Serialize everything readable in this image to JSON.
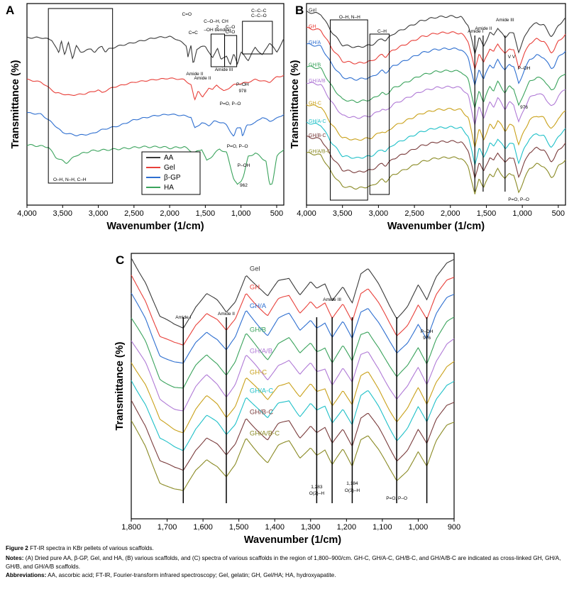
{
  "figure": {
    "caption_label": "Figure 2",
    "caption_title": "FT-IR spectra in KBr pellets of various scaffolds.",
    "notes_label": "Notes:",
    "notes_text": "(A) Dried pure AA, β-GP, Gel, and HA, (B) various scaffolds, and (C) spectra of various scaffolds in the region of 1,800–900/cm. GH-C, GH/A-C, GH/B-C, and GH/A/B-C are indicated as cross-linked GH, GH/A, GH/B, and GH/A/B scaffolds.",
    "abbrev_label": "Abbreviations:",
    "abbrev_text": "AA, ascorbic acid; FT-IR, Fourier-transform infrared spectroscopy; Gel, gelatin; GH, Gel/HA; HA, hydroxyapatite."
  },
  "chart_data": [
    {
      "panel": "A",
      "type": "line",
      "xlabel": "Wavenumber (1/cm)",
      "ylabel": "Transmittance (%)",
      "xlim": [
        4000,
        400
      ],
      "x_ticks": [
        "4,000",
        "3,500",
        "3,000",
        "2,500",
        "2,000",
        "1,500",
        "1,000",
        "500"
      ],
      "x_tick_values": [
        4000,
        3500,
        3000,
        2500,
        2000,
        1500,
        1000,
        500
      ],
      "legend": [
        "AA",
        "Gel",
        "β-GP",
        "HA"
      ],
      "legend_position": "bottom-right",
      "series": [
        {
          "name": "AA",
          "color": "#3a3a3a",
          "offset": 0.14,
          "scale": 0.16,
          "points": [
            [
              4000,
              0.05
            ],
            [
              3800,
              0.05
            ],
            [
              3650,
              0.12
            ],
            [
              3550,
              0.55
            ],
            [
              3520,
              0.1
            ],
            [
              3470,
              0.6
            ],
            [
              3420,
              0.2
            ],
            [
              3360,
              0.7
            ],
            [
              3310,
              0.3
            ],
            [
              3250,
              0.5
            ],
            [
              3100,
              0.4
            ],
            [
              3050,
              0.5
            ],
            [
              2950,
              0.3
            ],
            [
              2900,
              0.5
            ],
            [
              2850,
              0.4
            ],
            [
              2700,
              0.3
            ],
            [
              2500,
              0.2
            ],
            [
              2200,
              0.05
            ],
            [
              2000,
              0.02
            ],
            [
              1900,
              0.1
            ],
            [
              1760,
              0.3
            ],
            [
              1750,
              0.7
            ],
            [
              1700,
              0.3
            ],
            [
              1670,
              0.9
            ],
            [
              1620,
              0.4
            ],
            [
              1500,
              0.3
            ],
            [
              1400,
              0.7
            ],
            [
              1330,
              0.35
            ],
            [
              1280,
              0.75
            ],
            [
              1200,
              0.6
            ],
            [
              1150,
              0.9
            ],
            [
              1100,
              0.55
            ],
            [
              1050,
              0.85
            ],
            [
              1000,
              0.5
            ],
            [
              900,
              0.75
            ],
            [
              800,
              0.35
            ],
            [
              700,
              0.6
            ],
            [
              600,
              0.2
            ],
            [
              500,
              0.5
            ],
            [
              400,
              0.1
            ]
          ]
        },
        {
          "name": "Gel",
          "color": "#e8403a",
          "offset": 0.33,
          "scale": 0.13,
          "points": [
            [
              4000,
              0.2
            ],
            [
              3800,
              0.3
            ],
            [
              3600,
              0.7
            ],
            [
              3400,
              0.8
            ],
            [
              3200,
              0.75
            ],
            [
              3000,
              0.6
            ],
            [
              2950,
              0.7
            ],
            [
              2800,
              0.5
            ],
            [
              2500,
              0.3
            ],
            [
              2200,
              0.2
            ],
            [
              2000,
              0.15
            ],
            [
              1800,
              0.2
            ],
            [
              1700,
              0.4
            ],
            [
              1650,
              1.0
            ],
            [
              1600,
              0.6
            ],
            [
              1540,
              0.9
            ],
            [
              1450,
              0.5
            ],
            [
              1400,
              0.6
            ],
            [
              1340,
              0.4
            ],
            [
              1240,
              0.65
            ],
            [
              1100,
              0.4
            ],
            [
              1000,
              0.35
            ],
            [
              900,
              0.3
            ],
            [
              800,
              0.2
            ],
            [
              700,
              0.25
            ],
            [
              600,
              0.3
            ],
            [
              500,
              0.1
            ],
            [
              400,
              0.05
            ]
          ]
        },
        {
          "name": "β-GP",
          "color": "#2e6fd0",
          "offset": 0.5,
          "scale": 0.14,
          "points": [
            [
              4000,
              0.15
            ],
            [
              3800,
              0.2
            ],
            [
              3650,
              0.5
            ],
            [
              3500,
              0.85
            ],
            [
              3300,
              0.95
            ],
            [
              3100,
              0.9
            ],
            [
              2950,
              0.75
            ],
            [
              2700,
              0.6
            ],
            [
              2500,
              0.4
            ],
            [
              2200,
              0.25
            ],
            [
              2000,
              0.2
            ],
            [
              1800,
              0.25
            ],
            [
              1700,
              0.3
            ],
            [
              1650,
              0.7
            ],
            [
              1550,
              0.5
            ],
            [
              1450,
              0.6
            ],
            [
              1380,
              0.45
            ],
            [
              1250,
              0.5
            ],
            [
              1200,
              0.6
            ],
            [
              1100,
              1.0
            ],
            [
              1060,
              0.7
            ],
            [
              1000,
              0.65
            ],
            [
              978,
              1.0
            ],
            [
              920,
              0.6
            ],
            [
              800,
              0.5
            ],
            [
              700,
              0.3
            ],
            [
              600,
              0.45
            ],
            [
              500,
              0.35
            ],
            [
              400,
              0.2
            ]
          ]
        },
        {
          "name": "HA",
          "color": "#3aa35c",
          "offset": 0.68,
          "scale": 0.2,
          "points": [
            [
              4000,
              0.0
            ],
            [
              3700,
              0.05
            ],
            [
              3600,
              0.3
            ],
            [
              3450,
              0.45
            ],
            [
              3300,
              0.25
            ],
            [
              3100,
              0.15
            ],
            [
              2700,
              0.1
            ],
            [
              2400,
              0.05
            ],
            [
              2100,
              0.05
            ],
            [
              2000,
              0.08
            ],
            [
              1800,
              0.05
            ],
            [
              1700,
              0.15
            ],
            [
              1650,
              0.2
            ],
            [
              1550,
              0.1
            ],
            [
              1480,
              0.4
            ],
            [
              1420,
              0.3
            ],
            [
              1300,
              0.1
            ],
            [
              1200,
              0.2
            ],
            [
              1100,
              0.85
            ],
            [
              1050,
              1.0
            ],
            [
              1000,
              0.9
            ],
            [
              962,
              0.75
            ],
            [
              900,
              0.3
            ],
            [
              800,
              0.2
            ],
            [
              650,
              0.4
            ],
            [
              600,
              1.0
            ],
            [
              560,
              0.95
            ],
            [
              500,
              0.3
            ],
            [
              400,
              0.1
            ]
          ]
        }
      ],
      "annotations": [
        {
          "text": "O–H, N–H, C–H",
          "x": 3400
        },
        {
          "text": "C=O",
          "x": 1760
        },
        {
          "text": "C=C",
          "x": 1670
        },
        {
          "text": "C–O–H, CH",
          "x": 1350
        },
        {
          "text": "2",
          "x": 1330
        },
        {
          "text": "–OH bending",
          "x": 1330
        },
        {
          "text": "C–O",
          "x": 1150
        },
        {
          "text": "C–O",
          "x": 1150
        },
        {
          "text": "C–C–C",
          "x": 750
        },
        {
          "text": "C–C–O",
          "x": 750
        },
        {
          "text": "Amide II",
          "x": 1540
        },
        {
          "text": "Amide II",
          "x": 1650
        },
        {
          "text": "Amide III",
          "x": 1240
        },
        {
          "text": "P–OH",
          "x": 978
        },
        {
          "text": "978",
          "x": 978
        },
        {
          "text": "P=O, P–O",
          "x": 1150
        },
        {
          "text": "P=O, P–O",
          "x": 1050
        },
        {
          "text": "P–OH",
          "x": 962
        },
        {
          "text": "962",
          "x": 962
        }
      ]
    },
    {
      "panel": "B",
      "type": "line",
      "xlabel": "Wavenumber (1/cm)",
      "ylabel": "Transmittance (%)",
      "xlim": [
        4000,
        400
      ],
      "x_ticks": [
        "4,000",
        "3,500",
        "3,000",
        "2,500",
        "2,000",
        "1,500",
        "1,000",
        "500"
      ],
      "x_tick_values": [
        4000,
        3500,
        3000,
        2500,
        2000,
        1500,
        1000,
        500
      ],
      "series": [
        {
          "name": "Gel",
          "color": "#3a3a3a",
          "offset": 0.02
        },
        {
          "name": "GH",
          "color": "#e8403a",
          "offset": 0.1
        },
        {
          "name": "GH/A",
          "color": "#2e6fd0",
          "offset": 0.18
        },
        {
          "name": "GH/B",
          "color": "#3aa35c",
          "offset": 0.29
        },
        {
          "name": "GH/A/B",
          "color": "#b07ad6",
          "offset": 0.37
        },
        {
          "name": "GH-C",
          "color": "#c9a11a",
          "offset": 0.48
        },
        {
          "name": "GH/A-C",
          "color": "#1fc0c8",
          "offset": 0.57
        },
        {
          "name": "GH/B-C",
          "color": "#7a3c3c",
          "offset": 0.64
        },
        {
          "name": "GH/A/B-C",
          "color": "#8a8a24",
          "offset": 0.72
        }
      ],
      "annotations": [
        {
          "text": "O–H, N–H",
          "x": 3400
        },
        {
          "text": "C–H",
          "x": 2950
        },
        {
          "text": "Amide I",
          "x": 1650
        },
        {
          "text": "Amide II",
          "x": 1540
        },
        {
          "text": "Amide III",
          "x": 1240
        },
        {
          "text": "V",
          "x": 1180
        },
        {
          "text": "V",
          "x": 1120
        },
        {
          "text": "P–OH",
          "x": 976
        },
        {
          "text": "976",
          "x": 976
        },
        {
          "text": "P=O, P–O",
          "x": 1050
        }
      ]
    },
    {
      "panel": "C",
      "type": "line",
      "xlabel": "Wavenumber (1/cm)",
      "ylabel": "Transmittance (%)",
      "xlim": [
        1800,
        900
      ],
      "x_ticks": [
        "1,800",
        "1,700",
        "1,600",
        "1,500",
        "1,400",
        "1,300",
        "1,200",
        "1,100",
        "1,000",
        "900"
      ],
      "x_tick_values": [
        1800,
        1700,
        1600,
        1500,
        1400,
        1300,
        1200,
        1100,
        1000,
        900
      ],
      "vertical_lines": [
        1655,
        1535,
        1283,
        1240,
        1184,
        1060,
        976
      ],
      "series": [
        {
          "name": "Gel",
          "color": "#3a3a3a",
          "offset": 0.0
        },
        {
          "name": "GH",
          "color": "#e8403a",
          "offset": 0.07
        },
        {
          "name": "GH/A",
          "color": "#2e6fd0",
          "offset": 0.14
        },
        {
          "name": "GH/B",
          "color": "#3aa35c",
          "offset": 0.23
        },
        {
          "name": "GH/A/B",
          "color": "#b07ad6",
          "offset": 0.31
        },
        {
          "name": "GH-C",
          "color": "#c9a11a",
          "offset": 0.39
        },
        {
          "name": "GH/A-C",
          "color": "#1fc0c8",
          "offset": 0.46
        },
        {
          "name": "GH/B-C",
          "color": "#7a3c3c",
          "offset": 0.54
        },
        {
          "name": "GH/A/B-C",
          "color": "#8a8a24",
          "offset": 0.62
        }
      ],
      "annotations": [
        {
          "text": "Amide I",
          "x": 1655
        },
        {
          "text": "Amide II",
          "x": 1535
        },
        {
          "text": "Amide III",
          "x": 1240
        },
        {
          "text": "1,283",
          "x": 1283
        },
        {
          "text": "O(2)–H",
          "x": 1283
        },
        {
          "text": "1,184",
          "x": 1184
        },
        {
          "text": "O(3)–H",
          "x": 1184
        },
        {
          "text": "P–OH",
          "x": 976
        },
        {
          "text": "976",
          "x": 976
        },
        {
          "text": "P=O, P–O",
          "x": 1060
        }
      ]
    }
  ]
}
